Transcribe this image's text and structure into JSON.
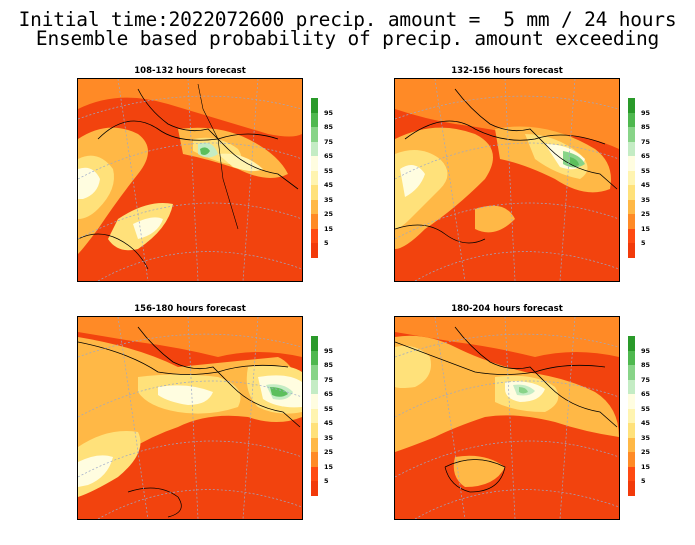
{
  "header": {
    "line1": "Initial time:2022072600 precip. amount =  5 mm / 24 hours",
    "line2": "Ensemble based probability of precip. amount exceeding"
  },
  "panels": [
    {
      "title": "108-132 hours forecast"
    },
    {
      "title": "132-156 hours forecast"
    },
    {
      "title": "156-180 hours forecast"
    },
    {
      "title": "180-204 hours forecast"
    }
  ],
  "colorbar": {
    "labels": [
      "95",
      "85",
      "75",
      "65",
      "55",
      "45",
      "35",
      "25",
      "15",
      "5"
    ],
    "colors": [
      "#2a9a2a",
      "#4fb84f",
      "#88d488",
      "#c4ecc4",
      "#fffde0",
      "#fff4b0",
      "#ffe17a",
      "#ffb846",
      "#ff8a26",
      "#ff4a12",
      "#f23a0a"
    ]
  },
  "map_colors": {
    "background": "#f2430e",
    "orange": "#ff8a26",
    "light_orange": "#ffb846",
    "yellow": "#ffe17a",
    "cream": "#fffde0",
    "light_green": "#c4ecc4",
    "green": "#5cbf5c",
    "grid": "#9aa8c8"
  }
}
